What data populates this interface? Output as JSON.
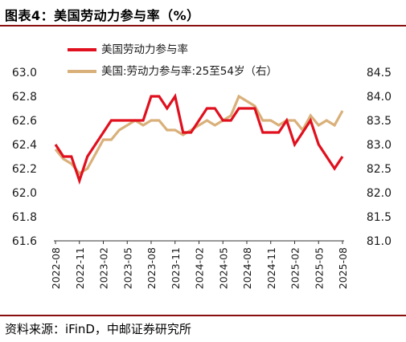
{
  "header": {
    "title": "图表4：美国劳动力参与率（%）"
  },
  "footer": {
    "source": "资料来源：iFinD，中邮证券研究所"
  },
  "colors": {
    "series1": "#e0101e",
    "series2": "#d9b07a",
    "rule": "#8a0f0f"
  },
  "chart_data": {
    "type": "line",
    "x": [
      "2022-08",
      "2022-09",
      "2022-10",
      "2022-11",
      "2022-12",
      "2023-01",
      "2023-02",
      "2023-03",
      "2023-04",
      "2023-05",
      "2023-06",
      "2023-07",
      "2023-08",
      "2023-09",
      "2023-10",
      "2023-11",
      "2023-12",
      "2024-01",
      "2024-02",
      "2024-03",
      "2024-04",
      "2024-05",
      "2024-06",
      "2024-07",
      "2024-08",
      "2024-09",
      "2024-10",
      "2024-11",
      "2024-12",
      "2025-01",
      "2025-02",
      "2025-03",
      "2025-04",
      "2025-05",
      "2025-06",
      "2025-07",
      "2025-08"
    ],
    "x_tick_labels": [
      "2022-08",
      "2022-11",
      "2023-02",
      "2023-05",
      "2023-08",
      "2023-11",
      "2024-02",
      "2024-05",
      "2024-08",
      "2024-11",
      "2025-02",
      "2025-05",
      "2025-08"
    ],
    "series": [
      {
        "name": "美国劳动力参与率",
        "axis": "left",
        "values": [
          62.4,
          62.3,
          62.3,
          62.1,
          62.3,
          62.4,
          62.5,
          62.6,
          62.6,
          62.6,
          62.6,
          62.6,
          62.8,
          62.8,
          62.7,
          62.8,
          62.5,
          62.5,
          62.6,
          62.7,
          62.7,
          62.6,
          62.6,
          62.7,
          62.7,
          62.7,
          62.5,
          62.5,
          62.5,
          62.6,
          62.4,
          62.5,
          62.6,
          62.4,
          62.3,
          62.2,
          62.3
        ]
      },
      {
        "name": "美国:劳动力参与率:25至54岁（右）",
        "axis": "right",
        "values": [
          82.9,
          82.7,
          82.6,
          82.4,
          82.5,
          82.8,
          83.1,
          83.1,
          83.3,
          83.4,
          83.5,
          83.4,
          83.5,
          83.5,
          83.3,
          83.3,
          83.2,
          83.3,
          83.4,
          83.5,
          83.4,
          83.5,
          83.6,
          84.0,
          83.9,
          83.8,
          83.5,
          83.5,
          83.4,
          83.5,
          83.5,
          83.3,
          83.6,
          83.4,
          83.5,
          83.4,
          83.7
        ]
      }
    ],
    "left_axis": {
      "ylim": [
        61.6,
        63.0
      ],
      "ticks": [
        "63.0",
        "62.8",
        "62.6",
        "62.4",
        "62.2",
        "62.0",
        "61.8",
        "61.6"
      ]
    },
    "right_axis": {
      "ylim": [
        81.0,
        84.5
      ],
      "ticks": [
        "84.5",
        "84.0",
        "83.5",
        "83.0",
        "82.5",
        "82.0",
        "81.5",
        "81.0"
      ]
    },
    "legend_position": "top",
    "grid": false
  }
}
